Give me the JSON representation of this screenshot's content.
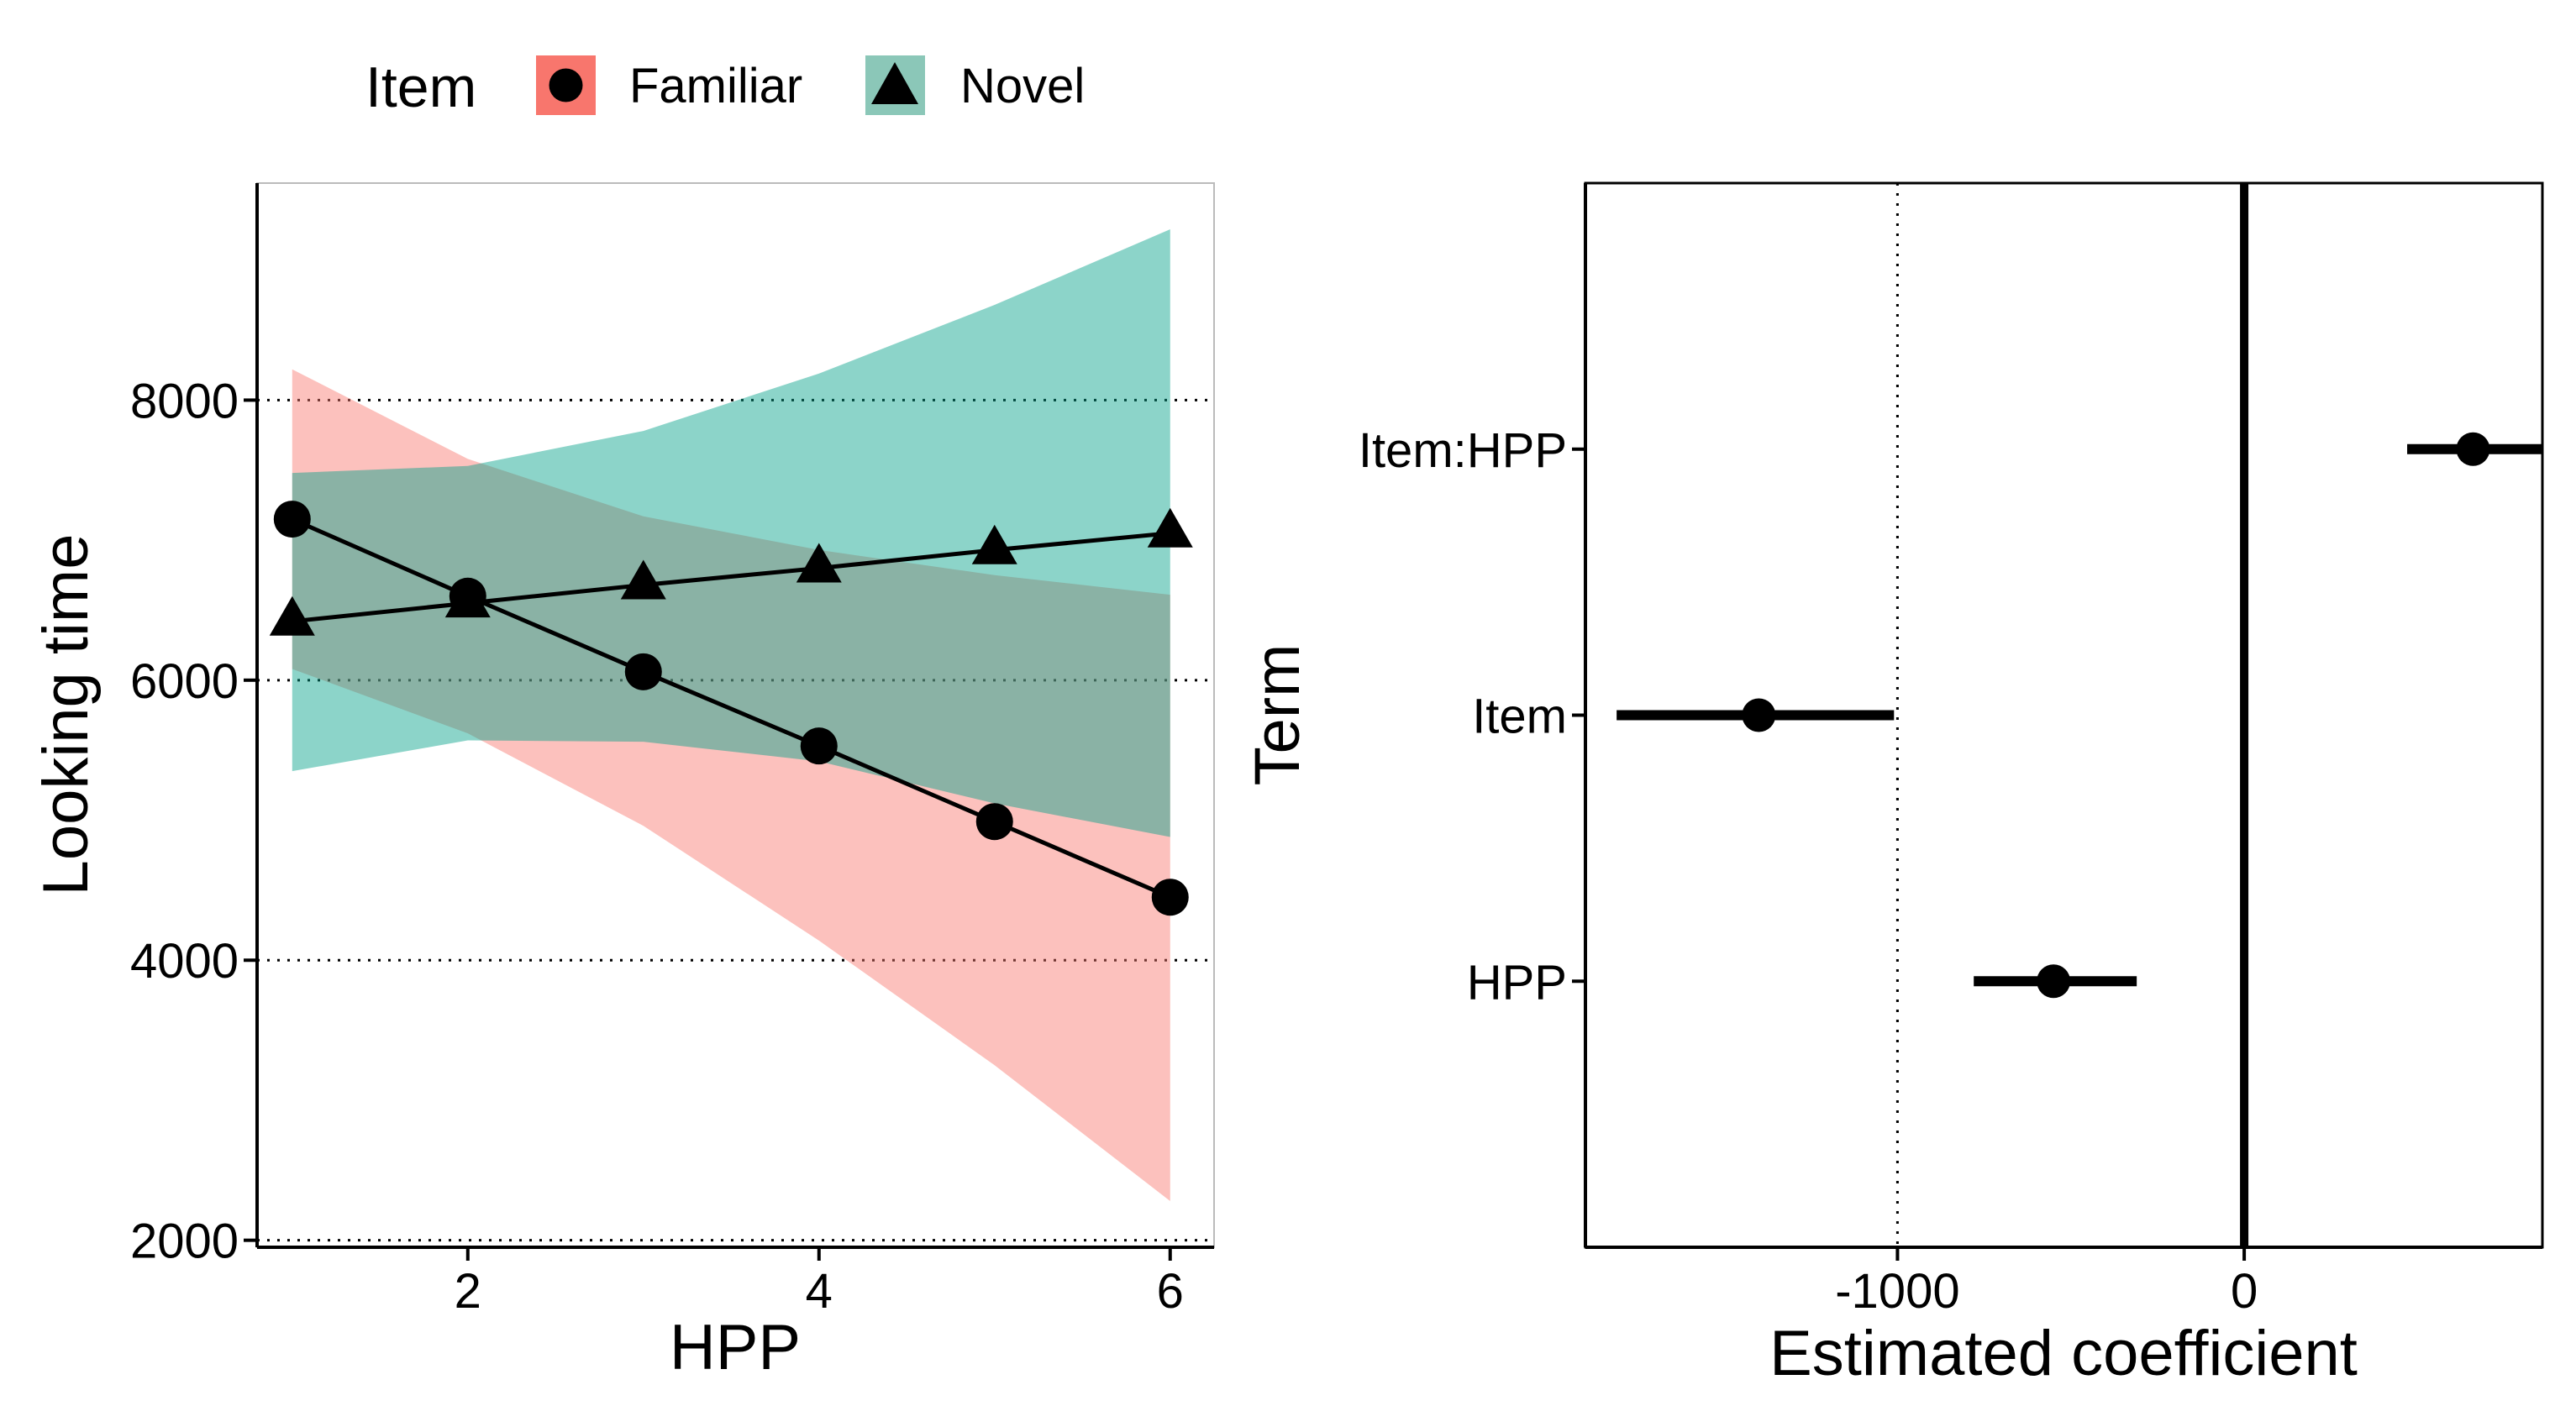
{
  "legend": {
    "title": "Item",
    "entries": [
      {
        "label": "Familiar",
        "shape": "circle",
        "fill": "#F8766D"
      },
      {
        "label": "Novel",
        "shape": "triangle",
        "fill": "#00A087"
      }
    ],
    "placement": "top"
  },
  "chart_data": [
    {
      "type": "line",
      "xlabel": "HPP",
      "ylabel": "Looking time",
      "xlim": [
        0.8,
        6.25
      ],
      "ylim": [
        1950,
        9550
      ],
      "xticks": [
        2,
        4,
        6
      ],
      "yticks": [
        2000,
        4000,
        6000,
        8000
      ],
      "grid": "horizontal dotted at y ticks",
      "x": [
        1,
        2,
        3,
        4,
        5,
        6
      ],
      "series": [
        {
          "name": "Familiar",
          "marker": "circle",
          "color": "#F8766D",
          "values": [
            7150,
            6600,
            6060,
            5530,
            4990,
            4450
          ],
          "ribbon_lower": [
            6080,
            5620,
            4960,
            4140,
            3250,
            2280
          ],
          "ribbon_upper": [
            8220,
            7580,
            7170,
            6930,
            6750,
            6610
          ]
        },
        {
          "name": "Novel",
          "marker": "triangle",
          "color": "#00A087",
          "values": [
            6420,
            6550,
            6680,
            6800,
            6930,
            7050
          ],
          "ribbon_lower": [
            5350,
            5570,
            5560,
            5420,
            5120,
            4880
          ],
          "ribbon_upper": [
            7480,
            7530,
            7780,
            8190,
            8680,
            9220
          ]
        }
      ]
    },
    {
      "type": "scatter",
      "subtype": "coefficient-interval",
      "xlabel": "Estimated coefficient",
      "ylabel": "Term",
      "xlim": [
        -1900,
        860
      ],
      "xticks": [
        -1000,
        0
      ],
      "tick_labels": [
        "-1000",
        "0"
      ],
      "reference_lines": [
        {
          "x": 0,
          "style": "solid"
        },
        {
          "x": -1000,
          "style": "dotted"
        }
      ],
      "categories": [
        "HPP",
        "Item",
        "Item:HPP"
      ],
      "estimates": [
        -550,
        -1400,
        660
      ],
      "lower": [
        -780,
        -1810,
        470
      ],
      "upper": [
        -310,
        -1010,
        860
      ]
    }
  ]
}
